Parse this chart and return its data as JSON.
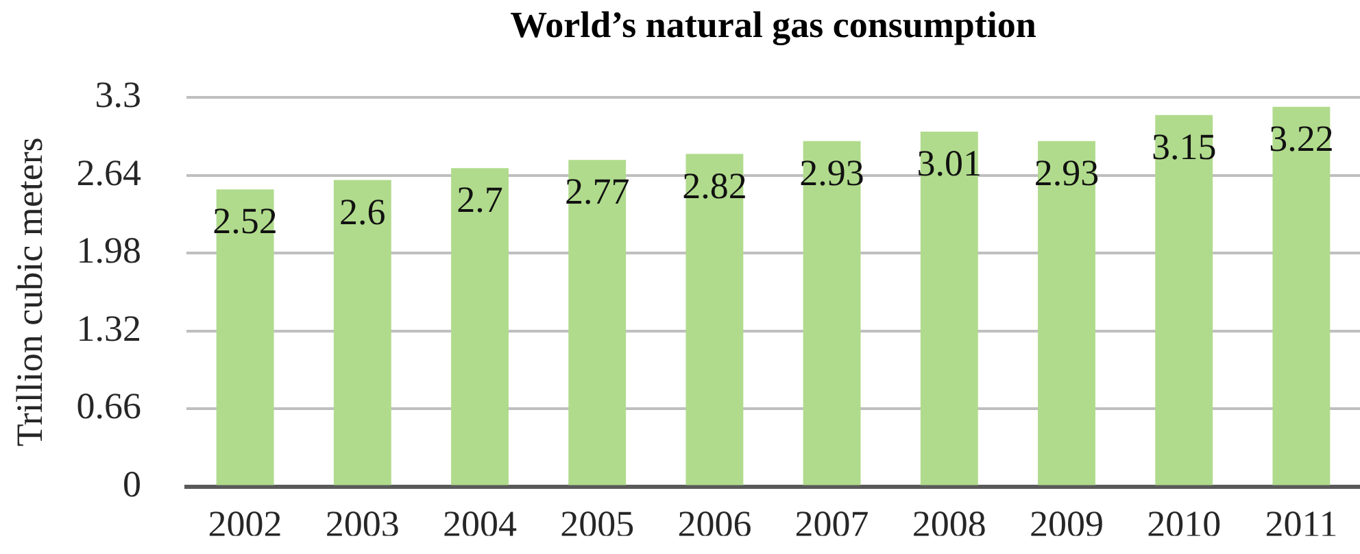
{
  "chart_data": {
    "type": "bar",
    "title": "World’s natural gas consumption",
    "ylabel": "Trillion cubic meters",
    "categories": [
      "2002",
      "2003",
      "2004",
      "2005",
      "2006",
      "2007",
      "2008",
      "2009",
      "2010",
      "2011"
    ],
    "values": [
      2.52,
      2.6,
      2.7,
      2.77,
      2.82,
      2.93,
      3.01,
      2.93,
      3.15,
      3.22
    ],
    "color": "#b0db8c",
    "ylim": [
      0,
      3.3
    ],
    "yticks": [
      0,
      0.66,
      1.32,
      1.98,
      2.64,
      3.3
    ],
    "grid": "y",
    "data_labels": true
  }
}
